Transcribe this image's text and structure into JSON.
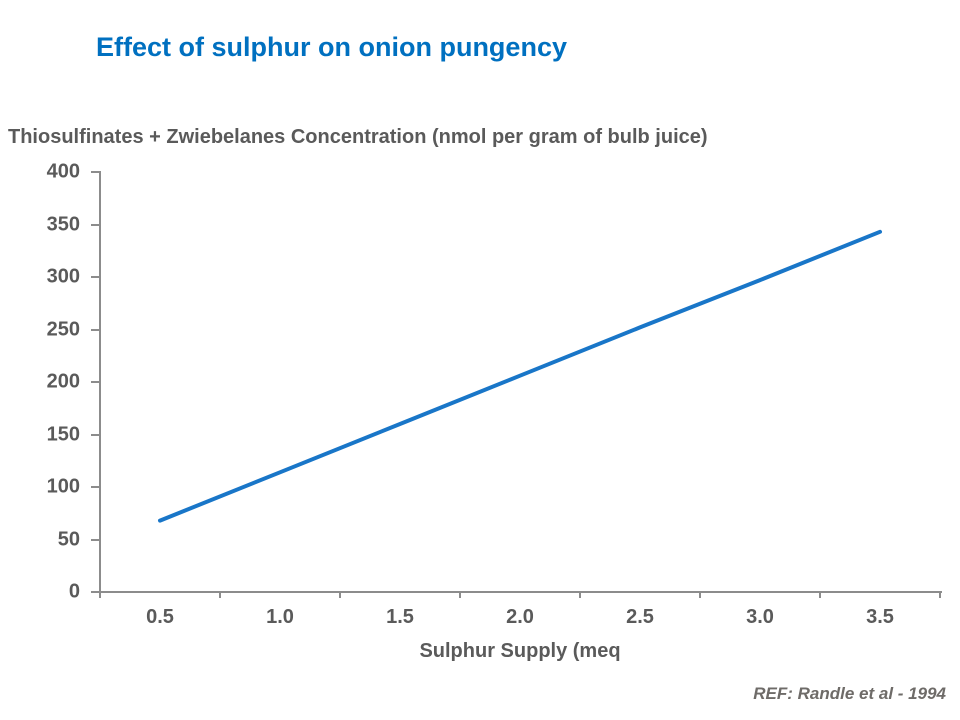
{
  "title": "Effect of sulphur on onion pungency",
  "footer": {
    "ref": "REF: Randle et al - 1994"
  },
  "colors": {
    "title_blue": "#0070C0",
    "text_gray": "#5A5A5A",
    "ref_gray": "#6E6B68",
    "axis_gray": "#8C8C8C",
    "line_blue": "#1976C8"
  },
  "chart_data": {
    "type": "line",
    "title": "Thiosulfinates + Zwiebelanes Concentration (nmol per gram of bulb juice)",
    "xlabel": "Sulphur Supply (meq",
    "ylabel": "Thiosulfinates + Zwiebelanes Concentration (nmol per gram of bulb juice)",
    "x": [
      0.5,
      1.0,
      1.5,
      2.0,
      2.5,
      3.0,
      3.5
    ],
    "x_tick_labels": [
      "0.5",
      "1.0",
      "1.5",
      "2.0",
      "2.5",
      "3.0",
      "3.5"
    ],
    "series": [
      {
        "name": "Thiosulfinates + Zwiebelanes concentration",
        "values": [
          68,
          114,
          160,
          206,
          252,
          297,
          343
        ]
      }
    ],
    "y_ticks": [
      0,
      50,
      100,
      150,
      200,
      250,
      300,
      350,
      400
    ],
    "ylim": [
      0,
      400
    ],
    "grid": false,
    "legend": "none",
    "annotation": "REF: Randle et al - 1994"
  }
}
